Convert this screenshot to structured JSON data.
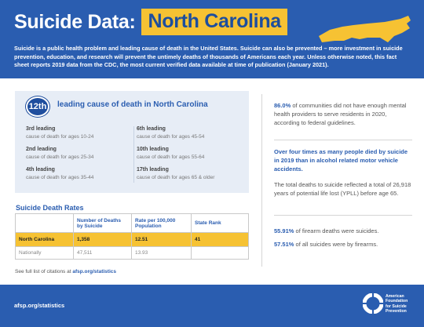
{
  "header": {
    "title": "Suicide Data:",
    "state": "North Carolina",
    "state_shape_icon": "north-carolina-map-icon",
    "intro": "Suicide is a public health problem and leading cause of death in the United States. Suicide can also be prevented – more investment in suicide prevention, education, and research will prevent the untimely deaths of thousands of Americans each year. Unless otherwise noted, this fact sheet reports 2019 data from the CDC, the most current verified data available at time of publication (January 2021)."
  },
  "leading": {
    "rank": "12th",
    "title": "leading cause of death in North Carolina",
    "items": [
      {
        "rank": "3rd leading",
        "desc": "cause of death for ages 10-24"
      },
      {
        "rank": "2nd leading",
        "desc": "cause of death for ages 25-34"
      },
      {
        "rank": "4th leading",
        "desc": "cause of death for ages 35-44"
      },
      {
        "rank": "6th leading",
        "desc": "cause of death for ages 45-54"
      },
      {
        "rank": "10th leading",
        "desc": "cause of death for ages 55-64"
      },
      {
        "rank": "17th leading",
        "desc": "cause of death for ages 65 & older"
      }
    ]
  },
  "rates": {
    "title": "Suicide Death Rates",
    "headers": [
      "",
      "Number of Deaths by Suicide",
      "Rate per 100,000 Population",
      "State Rank"
    ],
    "rows": [
      [
        "North Carolina",
        "1,358",
        "12.51",
        "41"
      ],
      [
        "Nationally",
        "47,511",
        "13.93",
        ""
      ]
    ]
  },
  "citations": {
    "prefix": "See full list of citations at",
    "link": "afsp.org/statistics"
  },
  "right": {
    "stat1_value": "86.0%",
    "stat1_text": "of communities did not have enough mental health providers to serve residents in 2020, according to federal guidelines.",
    "stat2_headline": "Over four times as many people died by suicide in 2019 than in alcohol related motor vehicle accidents.",
    "stat2_text": "The total deaths to suicide reflected a total of 26,918 years of potential life lost (YPLL) before age 65.",
    "stat3_value": "55.91%",
    "stat3_text": "of firearm deaths were suicides.",
    "stat4_value": "57.51%",
    "stat4_text": "of all suicides were by firearms."
  },
  "footer": {
    "url": "afsp.org/statistics",
    "logo_line1": "American",
    "logo_line2": "Foundation",
    "logo_line3": "for Suicide",
    "logo_line4": "Prevention",
    "logo_icon": "afsp-lifesaver-logo-icon"
  },
  "colors": {
    "brand_blue": "#2a5db0",
    "highlight_yellow": "#f6c233",
    "panel_bg": "#e7edf6"
  }
}
